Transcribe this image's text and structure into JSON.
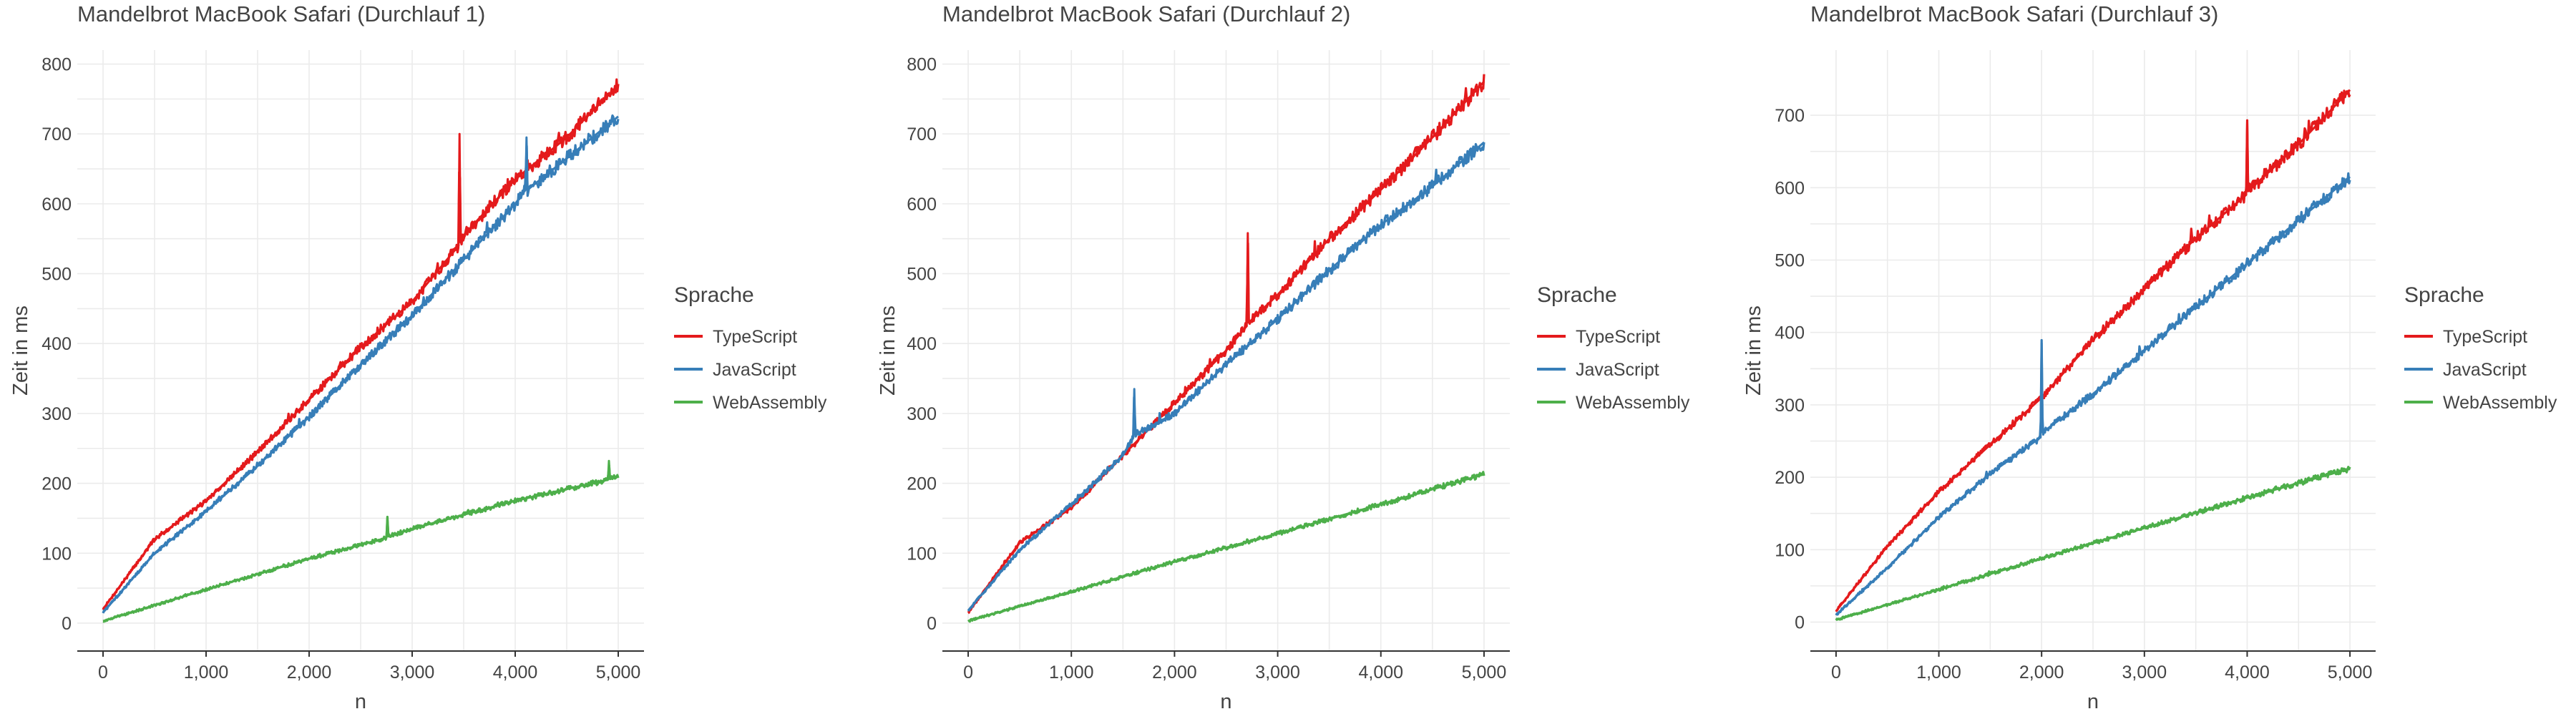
{
  "chart_data": [
    {
      "type": "line",
      "title": "Mandelbrot MacBook Safari (Durchlauf 1)",
      "xlabel": "n",
      "ylabel": "Zeit in ms",
      "xlim": [
        -250,
        5250
      ],
      "ylim": [
        -40,
        820
      ],
      "xticks": [
        0,
        1000,
        2000,
        3000,
        4000,
        5000
      ],
      "xtick_labels": [
        "0",
        "1,000",
        "2,000",
        "3,000",
        "4,000",
        "5,000"
      ],
      "yticks": [
        0,
        100,
        200,
        300,
        400,
        500,
        600,
        700,
        800
      ],
      "ytick_labels": [
        "0",
        "100",
        "200",
        "300",
        "400",
        "500",
        "600",
        "700",
        "800"
      ],
      "legend": {
        "title": "Sprache",
        "position": "right"
      },
      "grid": true,
      "series": [
        {
          "name": "TypeScript",
          "color": "#e41a1c",
          "x": [
            0,
            500,
            1000,
            1500,
            2000,
            2500,
            3000,
            3450,
            3460,
            3470,
            3500,
            4000,
            4500,
            5000
          ],
          "values": [
            20,
            120,
            175,
            245,
            320,
            395,
            460,
            540,
            700,
            545,
            555,
            635,
            695,
            770
          ]
        },
        {
          "name": "JavaScript",
          "color": "#377eb8",
          "x": [
            0,
            500,
            1000,
            1500,
            2000,
            2500,
            3000,
            3500,
            4000,
            4100,
            4110,
            4120,
            4500,
            5000
          ],
          "values": [
            15,
            100,
            160,
            225,
            295,
            370,
            440,
            520,
            600,
            620,
            695,
            620,
            665,
            725
          ]
        },
        {
          "name": "WebAssembly",
          "color": "#4daf4a",
          "x": [
            0,
            1000,
            2000,
            2750,
            2760,
            2770,
            3000,
            4000,
            4900,
            4910,
            4920,
            5000
          ],
          "values": [
            3,
            48,
            92,
            122,
            150,
            124,
            135,
            175,
            205,
            232,
            206,
            210
          ]
        }
      ]
    },
    {
      "type": "line",
      "title": "Mandelbrot MacBook Safari (Durchlauf 2)",
      "xlabel": "n",
      "ylabel": "Zeit in ms",
      "xlim": [
        -250,
        5250
      ],
      "ylim": [
        -40,
        820
      ],
      "xticks": [
        0,
        1000,
        2000,
        3000,
        4000,
        5000
      ],
      "xtick_labels": [
        "0",
        "1,000",
        "2,000",
        "3,000",
        "4,000",
        "5,000"
      ],
      "yticks": [
        0,
        100,
        200,
        300,
        400,
        500,
        600,
        700,
        800
      ],
      "ytick_labels": [
        "0",
        "100",
        "200",
        "300",
        "400",
        "500",
        "600",
        "700",
        "800"
      ],
      "legend": {
        "title": "Sprache",
        "position": "right"
      },
      "grid": true,
      "series": [
        {
          "name": "TypeScript",
          "color": "#e41a1c",
          "x": [
            0,
            500,
            1000,
            1500,
            2000,
            2500,
            2700,
            2710,
            2720,
            3000,
            3500,
            4000,
            4500,
            5000
          ],
          "values": [
            15,
            115,
            165,
            240,
            315,
            390,
            425,
            558,
            430,
            470,
            550,
            620,
            695,
            775
          ]
        },
        {
          "name": "JavaScript",
          "color": "#377eb8",
          "x": [
            0,
            500,
            1000,
            1500,
            1600,
            1610,
            1620,
            2000,
            2500,
            3000,
            3500,
            4000,
            4500,
            5000
          ],
          "values": [
            18,
            105,
            170,
            240,
            265,
            335,
            270,
            300,
            370,
            435,
            505,
            570,
            625,
            688
          ]
        },
        {
          "name": "WebAssembly",
          "color": "#4daf4a",
          "x": [
            0,
            1000,
            2000,
            3000,
            4000,
            5000
          ],
          "values": [
            3,
            45,
            88,
            128,
            170,
            213
          ]
        }
      ]
    },
    {
      "type": "line",
      "title": "Mandelbrot MacBook Safari (Durchlauf 3)",
      "xlabel": "n",
      "ylabel": "Zeit in ms",
      "xlim": [
        -250,
        5250
      ],
      "ylim": [
        -40,
        790
      ],
      "xticks": [
        0,
        1000,
        2000,
        3000,
        4000,
        5000
      ],
      "xtick_labels": [
        "0",
        "1,000",
        "2,000",
        "3,000",
        "4,000",
        "5,000"
      ],
      "yticks": [
        0,
        100,
        200,
        300,
        400,
        500,
        600,
        700
      ],
      "ytick_labels": [
        "0",
        "100",
        "200",
        "300",
        "400",
        "500",
        "600",
        "700"
      ],
      "legend": {
        "title": "Sprache",
        "position": "right"
      },
      "grid": true,
      "series": [
        {
          "name": "TypeScript",
          "color": "#e41a1c",
          "x": [
            0,
            500,
            1000,
            1500,
            2000,
            2500,
            3000,
            3500,
            3990,
            4000,
            4010,
            4500,
            5000
          ],
          "values": [
            15,
            105,
            180,
            245,
            310,
            390,
            460,
            530,
            590,
            690,
            595,
            660,
            735
          ]
        },
        {
          "name": "JavaScript",
          "color": "#377eb8",
          "x": [
            0,
            500,
            1000,
            1500,
            1990,
            2000,
            2010,
            2500,
            3000,
            3500,
            4000,
            4500,
            5000
          ],
          "values": [
            10,
            75,
            145,
            205,
            255,
            385,
            262,
            315,
            375,
            435,
            495,
            555,
            615
          ]
        },
        {
          "name": "WebAssembly",
          "color": "#4daf4a",
          "x": [
            0,
            1000,
            2000,
            3000,
            4000,
            5000
          ],
          "values": [
            3,
            45,
            88,
            130,
            172,
            212
          ]
        }
      ]
    }
  ]
}
